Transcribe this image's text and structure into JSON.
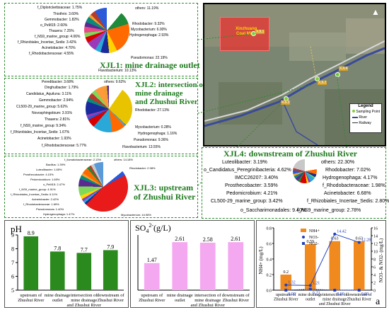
{
  "xjl1": {
    "title": "XJL1: mine drainage outlet",
    "labels": [
      "f_Diplorickettsiaceae: 1.75%",
      "Thiothrix: 3.60%",
      "Gemmobacter: 1.82%",
      "o_PeM15: 2.60%",
      "Thauera: 7.25%",
      "f_NS9_marine_group: 4.06%",
      "f_Rhizobiales_Incertae_Sedis: 3.42%",
      "Acinetobacter: 4.70%",
      "f_Rhodobacteraceae: 4.55%",
      "Flavobacterium: 10.13%",
      "others: 11.19%",
      "Rhodobacter: 9.32%",
      "Mycobacterium: 6.00%",
      "Hydrogenophaga: 2.93%",
      "Pseudomonas: 22.19%"
    ]
  },
  "xjl2": {
    "title": "XJL2: intersection of mine drainage and Zhushui River",
    "title_lines": [
      "XJL2: intersection of",
      "mine drainage",
      "and Zhushui River"
    ],
    "labels": [
      "Peredibacter: 3.68%",
      "Dinghuibacter: 1.79%",
      "Candidatus_Aquiluna: 3.11%",
      "Gemmobacter: 2.94%",
      "CL500-29_marine_group: 5.62%",
      "Novosphingobium: 3.91%",
      "Thauera: 2.81%",
      "f_NS9_marine_group: 9.34%",
      "f_Rhizobiales_Incertae_Sedis: 1.67%",
      "Acinetobacter: 1.93%",
      "f_Rhodobacteraceae: 5.77%",
      "others: 9.62%",
      "Rhodobacter: 27.13%",
      "Mycobacterium: 0.28%",
      "Hydrogenophaga: 1.16%",
      "Pseudomonas: 9.36%",
      "Flavobacterium: 13.55%"
    ]
  },
  "xjl3": {
    "title": "XJL3: upstream of Zhushui River",
    "title_lines": [
      "XJL3: upstream",
      "of Zhushui River"
    ],
    "labels": [
      "f_Ilumatobacteraceae: 2.13%",
      "Bacillus: 1.39%",
      "Luteolibacter: 1.65%",
      "Prosthecobacter: 4.15%",
      "Pedomicrobium: 1.69%",
      "o_PeM15: 2.47%",
      "f_NS9_marine_group: 4.91%",
      "f_Rhizobiales_Incertae_Sedis: 6.11%",
      "Acinetobacter: 2.42%",
      "f_Rhodobacteraceae: 1.69%",
      "Pseudomonas: 1.40%",
      "Hydrogenophaga: 1.47%",
      "others: 14.18%",
      "Rhodobacter: 2.98%",
      "Mycobacterium: 44.98%"
    ]
  },
  "xjl4": {
    "title": "XJL4: downstream of Zhushui River",
    "labels_left": [
      "Luteolibacter: 3.19%",
      "o_Candidatus_Peregrinibacteria: 4.62%",
      "IMCC26207: 3.40%",
      "Prosthecobacter: 3.59%",
      "Pedomicrobium: 4.21%",
      "CL500-29_marine_group: 3.42%",
      "o_Saccharimonadales: 9.40%"
    ],
    "labels_right": [
      "others: 22.30%",
      "Rhodobacter: 7.02%",
      "Hydrogenophaga: 4.17%",
      "f_Rhodobacteraceae: 1.98%",
      "Acinetobacter: 6.68%",
      "f_Rhizobiales_Incertae_Sedis: 2.80%",
      "f_NS9_marine_group: 2.78%"
    ]
  },
  "map": {
    "site_labels": [
      "XJL1",
      "XJL2",
      "XJL3",
      "XJL4"
    ],
    "mine_label": [
      "Xinzhuang",
      "Coal Mine"
    ],
    "legend_title": "Legend",
    "legend_items": [
      "Sampling Point",
      "River",
      "Railway"
    ],
    "colors": {
      "mine": "#e8322e",
      "site": "#7ed03a",
      "river": "#3a4a9a"
    }
  },
  "chart_data": [
    {
      "type": "bar",
      "title": "pH",
      "categories": [
        "upstream of Zhushui River",
        "mine drainage outlet",
        "intersection of mine drainage and Zhushui River",
        "downstream of Zhushui River"
      ],
      "values": [
        8.9,
        7.8,
        7.7,
        7.9
      ],
      "value_labels": [
        "8.9",
        "7.8",
        "7.7",
        "7.9"
      ],
      "ylim": [
        5,
        9
      ],
      "yticks": [
        "5",
        "6",
        "7",
        "8",
        "9"
      ],
      "color": "#2a8a1e"
    },
    {
      "type": "bar",
      "title": "SO42-(g/L)",
      "title_main": "SO",
      "title_sub": "4",
      "title_sup": "2-",
      "title_unit": "(g/L)",
      "categories": [
        "upstream of Zhushui River",
        "mine drainage outlet",
        "intersection of mine drainage and Zhushui River",
        "downstream of Zhushui River"
      ],
      "values": [
        1.47,
        2.61,
        2.58,
        2.61
      ],
      "value_labels": [
        "1.47",
        "2.61",
        "2.58",
        "2.61"
      ],
      "ylim": [
        0,
        3
      ],
      "color": "#f4a8f0"
    },
    {
      "type": "bar+line",
      "categories": [
        "upstream of Zhushui River",
        "mine drainage outlet",
        "intersection of mine drainage and Zhushui River",
        "downstream of Zhushui River"
      ],
      "series": [
        {
          "name": "NH4+",
          "type": "bar",
          "values": [
            0.2,
            0.59,
            0.63,
            0.63
          ],
          "labels": [
            "0.2",
            "0.59",
            "0.63",
            "0.63"
          ],
          "color": "#f08a1e"
        },
        {
          "name": "NO3-",
          "type": "line",
          "values": [
            1.32,
            1.21,
            14.42,
            12.28
          ],
          "labels": [
            "1.32",
            "1.21",
            "14.42",
            "12.28"
          ],
          "color": "#2040c0"
        },
        {
          "name": "NO2-",
          "type": "line",
          "values": [
            0,
            0.23,
            0,
            0
          ],
          "labels": [
            "0.00",
            "0.23",
            "0.00",
            "0.00"
          ],
          "color": "#2040c0"
        }
      ],
      "ylabel_left": "NH4+ (mg/L)",
      "ylabel_right": "NO3- & NO2- (mg/L)",
      "ylim_left": [
        0,
        0.8
      ],
      "ylim_right": [
        0,
        16
      ],
      "yticks_left": [
        "0.0",
        "0.2",
        "0.4",
        "0.6",
        "0.8"
      ],
      "yticks_right": [
        "0",
        "2",
        "4",
        "6",
        "8",
        "10",
        "12",
        "14",
        "16"
      ],
      "panel_letter": "a"
    }
  ]
}
